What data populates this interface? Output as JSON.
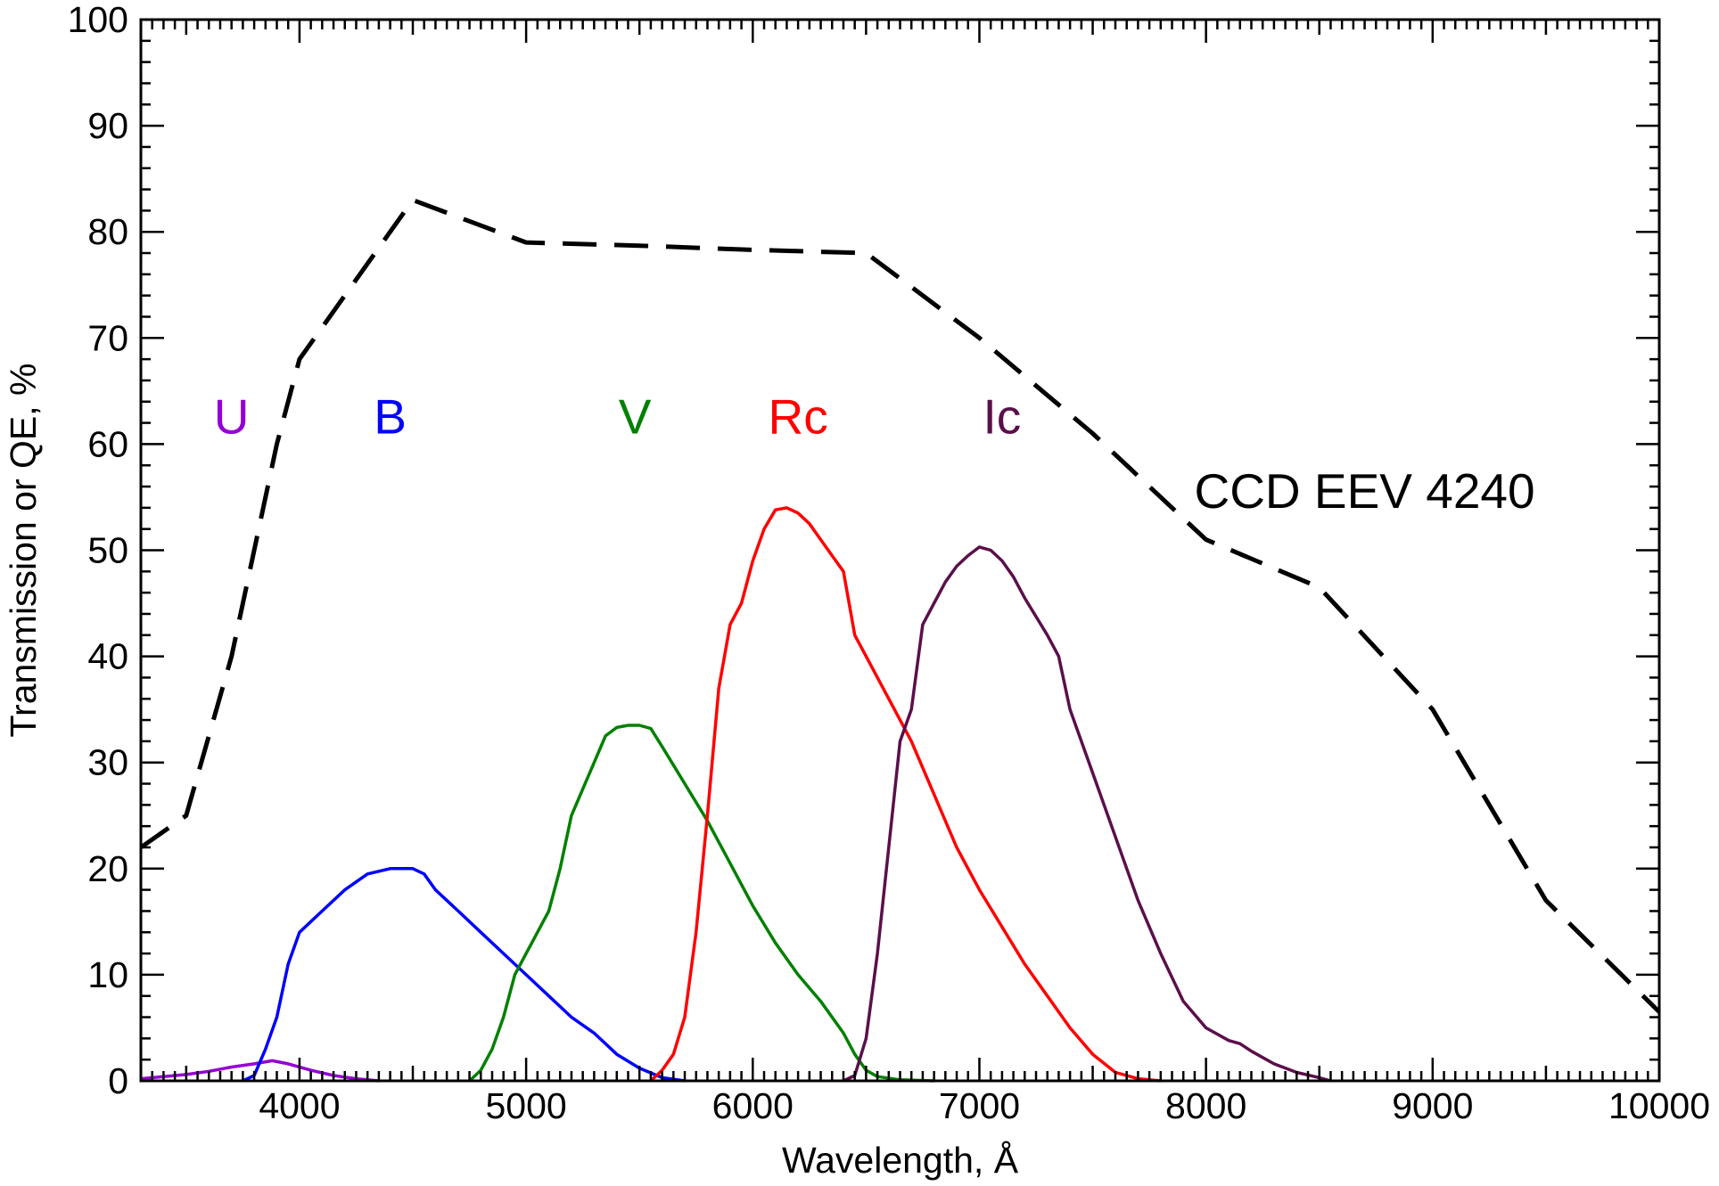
{
  "chart_data": {
    "type": "line",
    "xlabel": "Wavelength, Å",
    "ylabel": "Transmission or QE, %",
    "xlim": [
      3300,
      10000
    ],
    "ylim": [
      0,
      100
    ],
    "x_ticks": [
      4000,
      5000,
      6000,
      7000,
      8000,
      9000,
      10000
    ],
    "y_ticks": [
      0,
      10,
      20,
      30,
      40,
      50,
      60,
      70,
      80,
      90,
      100
    ],
    "grid": false,
    "annotations": [
      {
        "text": "CCD EEV 4240",
        "x": 8700,
        "y": 54
      }
    ],
    "series": [
      {
        "name": "U",
        "color": "#9400D3",
        "style": "solid",
        "label_pos": {
          "x": 3700,
          "y": 61
        },
        "points": [
          [
            3300,
            0.2
          ],
          [
            3400,
            0.4
          ],
          [
            3500,
            0.6
          ],
          [
            3600,
            0.9
          ],
          [
            3700,
            1.3
          ],
          [
            3800,
            1.6
          ],
          [
            3880,
            1.9
          ],
          [
            3950,
            1.6
          ],
          [
            4050,
            1.0
          ],
          [
            4150,
            0.5
          ],
          [
            4250,
            0.2
          ],
          [
            4350,
            0.0
          ]
        ]
      },
      {
        "name": "B",
        "color": "#0000FF",
        "style": "solid",
        "label_pos": {
          "x": 4400,
          "y": 61
        },
        "points": [
          [
            3750,
            0
          ],
          [
            3800,
            0.5
          ],
          [
            3850,
            3
          ],
          [
            3900,
            6
          ],
          [
            3950,
            11
          ],
          [
            4000,
            14
          ],
          [
            4100,
            16
          ],
          [
            4200,
            18
          ],
          [
            4300,
            19.5
          ],
          [
            4400,
            20
          ],
          [
            4500,
            20
          ],
          [
            4550,
            19.5
          ],
          [
            4600,
            18
          ],
          [
            4700,
            16
          ],
          [
            4800,
            14
          ],
          [
            4900,
            12
          ],
          [
            5000,
            10
          ],
          [
            5100,
            8
          ],
          [
            5200,
            6
          ],
          [
            5300,
            4.5
          ],
          [
            5400,
            2.5
          ],
          [
            5500,
            1.2
          ],
          [
            5600,
            0.3
          ],
          [
            5700,
            0
          ]
        ]
      },
      {
        "name": "V",
        "color": "#008000",
        "style": "solid",
        "label_pos": {
          "x": 5480,
          "y": 61
        },
        "points": [
          [
            4750,
            0
          ],
          [
            4800,
            1
          ],
          [
            4850,
            3
          ],
          [
            4900,
            6
          ],
          [
            4950,
            10
          ],
          [
            5000,
            12
          ],
          [
            5050,
            14
          ],
          [
            5100,
            16
          ],
          [
            5150,
            20
          ],
          [
            5200,
            25
          ],
          [
            5300,
            30
          ],
          [
            5350,
            32.5
          ],
          [
            5400,
            33.3
          ],
          [
            5450,
            33.5
          ],
          [
            5500,
            33.5
          ],
          [
            5550,
            33.2
          ],
          [
            5600,
            31.5
          ],
          [
            5700,
            28
          ],
          [
            5800,
            24.5
          ],
          [
            5900,
            20.5
          ],
          [
            6000,
            16.5
          ],
          [
            6100,
            13
          ],
          [
            6200,
            10
          ],
          [
            6300,
            7.5
          ],
          [
            6400,
            4.5
          ],
          [
            6450,
            2.5
          ],
          [
            6500,
            1.0
          ],
          [
            6550,
            0.4
          ],
          [
            6650,
            0.1
          ],
          [
            6800,
            0
          ]
        ]
      },
      {
        "name": "Rc",
        "color": "#FF0000",
        "style": "solid",
        "label_pos": {
          "x": 6200,
          "y": 61
        },
        "points": [
          [
            5550,
            0
          ],
          [
            5600,
            1
          ],
          [
            5650,
            2.5
          ],
          [
            5700,
            6
          ],
          [
            5750,
            14
          ],
          [
            5800,
            25
          ],
          [
            5850,
            37
          ],
          [
            5900,
            43
          ],
          [
            5950,
            45
          ],
          [
            6000,
            49
          ],
          [
            6050,
            52
          ],
          [
            6100,
            53.8
          ],
          [
            6150,
            54
          ],
          [
            6200,
            53.5
          ],
          [
            6250,
            52.5
          ],
          [
            6300,
            51
          ],
          [
            6350,
            49.5
          ],
          [
            6400,
            48
          ],
          [
            6450,
            42
          ],
          [
            6500,
            40
          ],
          [
            6600,
            36
          ],
          [
            6700,
            32
          ],
          [
            6800,
            27
          ],
          [
            6900,
            22
          ],
          [
            7000,
            18
          ],
          [
            7100,
            14.5
          ],
          [
            7200,
            11
          ],
          [
            7300,
            8
          ],
          [
            7400,
            5
          ],
          [
            7500,
            2.5
          ],
          [
            7600,
            0.8
          ],
          [
            7700,
            0.2
          ],
          [
            7800,
            0
          ]
        ]
      },
      {
        "name": "Ic",
        "color": "#5B0F4A",
        "style": "solid",
        "label_pos": {
          "x": 7100,
          "y": 61
        },
        "points": [
          [
            6400,
            0
          ],
          [
            6450,
            0.5
          ],
          [
            6500,
            4
          ],
          [
            6550,
            12
          ],
          [
            6600,
            22
          ],
          [
            6650,
            32
          ],
          [
            6700,
            35
          ],
          [
            6750,
            43
          ],
          [
            6800,
            45
          ],
          [
            6850,
            47
          ],
          [
            6900,
            48.5
          ],
          [
            6950,
            49.5
          ],
          [
            7000,
            50.3
          ],
          [
            7050,
            50
          ],
          [
            7100,
            49
          ],
          [
            7150,
            47.5
          ],
          [
            7200,
            45.5
          ],
          [
            7300,
            42
          ],
          [
            7350,
            40
          ],
          [
            7400,
            35
          ],
          [
            7500,
            29
          ],
          [
            7600,
            23
          ],
          [
            7700,
            17
          ],
          [
            7800,
            12
          ],
          [
            7900,
            7.5
          ],
          [
            8000,
            5
          ],
          [
            8100,
            3.8
          ],
          [
            8150,
            3.5
          ],
          [
            8200,
            2.8
          ],
          [
            8300,
            1.6
          ],
          [
            8400,
            0.8
          ],
          [
            8500,
            0.3
          ],
          [
            8550,
            0
          ]
        ]
      },
      {
        "name": "CCD EEV 4240",
        "color": "#000000",
        "style": "dashed",
        "points": [
          [
            3300,
            22
          ],
          [
            3500,
            25
          ],
          [
            3700,
            40
          ],
          [
            3800,
            50
          ],
          [
            3900,
            60
          ],
          [
            4000,
            68
          ],
          [
            4500,
            83
          ],
          [
            5000,
            79
          ],
          [
            5500,
            78.7
          ],
          [
            6000,
            78.3
          ],
          [
            6500,
            78
          ],
          [
            7000,
            70
          ],
          [
            7500,
            61
          ],
          [
            8000,
            51
          ],
          [
            8500,
            46.5
          ],
          [
            9000,
            35
          ],
          [
            9500,
            17
          ],
          [
            10000,
            6.5
          ]
        ]
      }
    ]
  }
}
